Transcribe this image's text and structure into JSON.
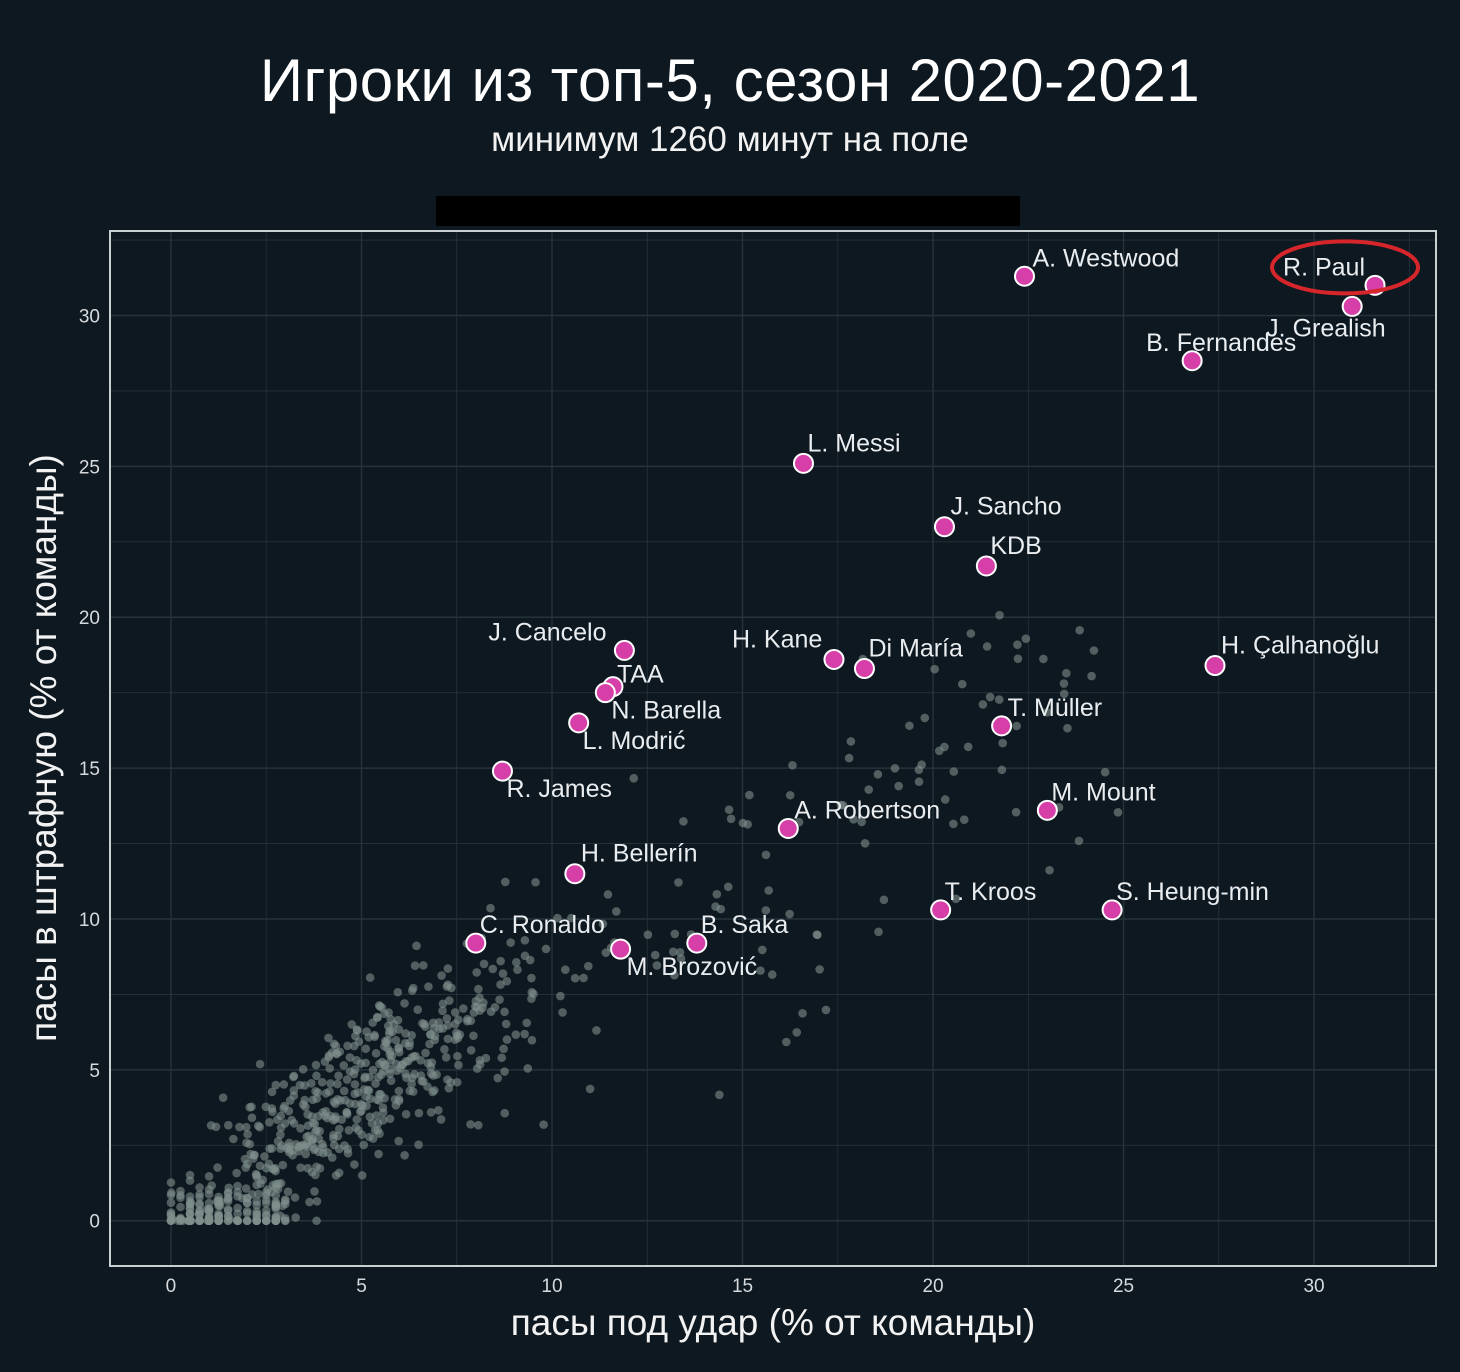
{
  "chart_data": {
    "type": "scatter",
    "title": "Игроки из топ-5, сезон 2020-2021",
    "subtitle": "минимум 1260 минут на поле",
    "xlabel": "пасы под удар (% от команды)",
    "ylabel": "пасы в штрафную (% от команды)",
    "xlim": [
      -1.6,
      33.2
    ],
    "ylim": [
      -1.5,
      32.8
    ],
    "xticks": [
      0,
      5,
      10,
      15,
      20,
      25,
      30
    ],
    "yticks": [
      0,
      5,
      10,
      15,
      20,
      25,
      30
    ],
    "grid": true,
    "colors": {
      "background": "#0e1820",
      "highlight": "#d63fa8",
      "highlight_stroke": "#ffffff",
      "others": "#7f8f8c",
      "grid": "#26333b",
      "frame": "#c8d0d4",
      "annotation_circle": "#d7262b"
    },
    "highlighted": [
      {
        "name": "A. Westwood",
        "x": 22.4,
        "y": 31.3
      },
      {
        "name": "R. Paul",
        "x": 31.6,
        "y": 31.0
      },
      {
        "name": "J. Grealish",
        "x": 31.0,
        "y": 30.3
      },
      {
        "name": "B. Fernandes",
        "x": 26.8,
        "y": 28.5
      },
      {
        "name": "L. Messi",
        "x": 16.6,
        "y": 25.1
      },
      {
        "name": "J. Sancho",
        "x": 20.3,
        "y": 23.0
      },
      {
        "name": "KDB",
        "x": 21.4,
        "y": 21.7
      },
      {
        "name": "J. Cancelo",
        "x": 11.9,
        "y": 18.9
      },
      {
        "name": "H. Kane",
        "x": 17.4,
        "y": 18.6
      },
      {
        "name": "Di María",
        "x": 18.2,
        "y": 18.3
      },
      {
        "name": "H. Çalhanoğlu",
        "x": 27.4,
        "y": 18.4
      },
      {
        "name": "TAA",
        "x": 11.6,
        "y": 17.7
      },
      {
        "name": "N. Barella",
        "x": 11.4,
        "y": 17.5
      },
      {
        "name": "L. Modrić",
        "x": 10.7,
        "y": 16.5
      },
      {
        "name": "T. Müller",
        "x": 21.8,
        "y": 16.4
      },
      {
        "name": "R. James",
        "x": 8.7,
        "y": 14.9
      },
      {
        "name": "M. Mount",
        "x": 23.0,
        "y": 13.6
      },
      {
        "name": "A. Robertson",
        "x": 16.2,
        "y": 13.0
      },
      {
        "name": "H. Bellerín",
        "x": 10.6,
        "y": 11.5
      },
      {
        "name": "T. Kroos",
        "x": 20.2,
        "y": 10.3
      },
      {
        "name": "S. Heung-min",
        "x": 24.7,
        "y": 10.3
      },
      {
        "name": "C. Ronaldo",
        "x": 8.0,
        "y": 9.2
      },
      {
        "name": "M. Brozović",
        "x": 11.8,
        "y": 9.0
      },
      {
        "name": "B. Saka",
        "x": 13.8,
        "y": 9.2
      }
    ],
    "annotated": "R. Paul",
    "others_generator": {
      "count": 760,
      "seed": 7
    }
  }
}
